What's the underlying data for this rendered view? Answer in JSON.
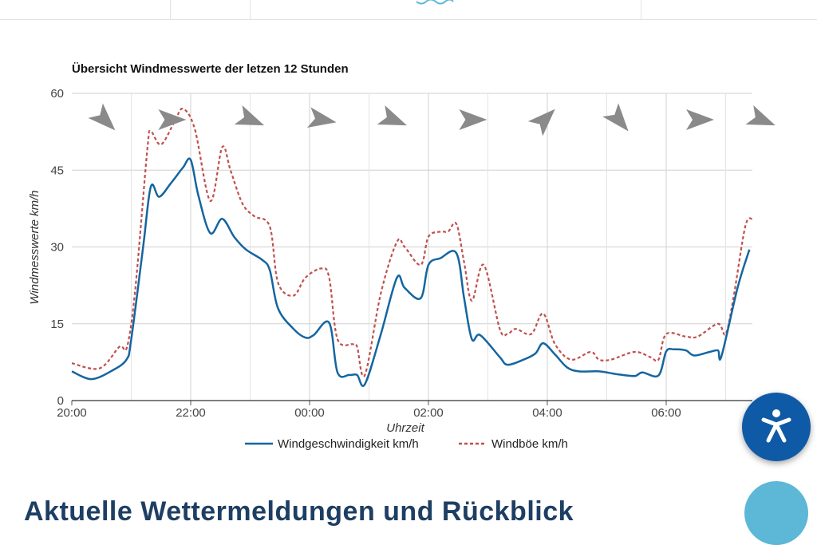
{
  "page": {
    "bottom_heading": "Aktuelle Wettermeldungen und Rückblick"
  },
  "colors": {
    "speed": "#1565a0",
    "gust": "#c0504d",
    "grid": "#d0d0d0",
    "arrow": "#8a8a8a",
    "accessibility_button": "#0f5aa6"
  },
  "icons": {
    "top_logo": "waves-icon",
    "accessibility": "accessibility-person-icon"
  },
  "chart_data": {
    "type": "line",
    "title": "Übersicht Windmesswerte der letzen 12 Stunden",
    "xlabel": "Uhrzeit",
    "ylabel": "Windmesswerte km/h",
    "x_unit": "hours after 20:00",
    "xlim": [
      0,
      11.45
    ],
    "ylim": [
      0,
      60
    ],
    "yticks": [
      0,
      15,
      30,
      45,
      60
    ],
    "xticks": [
      {
        "x": 0,
        "label": "20:00"
      },
      {
        "x": 2,
        "label": "22:00"
      },
      {
        "x": 4,
        "label": "00:00"
      },
      {
        "x": 6,
        "label": "02:00"
      },
      {
        "x": 8,
        "label": "04:00"
      },
      {
        "x": 10,
        "label": "06:00"
      }
    ],
    "grid": true,
    "legend_position": "bottom",
    "series": [
      {
        "name": "Windgeschwindigkeit km/h",
        "style": "solid",
        "points": [
          [
            0,
            5.7
          ],
          [
            0.33,
            4.2
          ],
          [
            0.67,
            5.8
          ],
          [
            0.92,
            8.0
          ],
          [
            1.0,
            12
          ],
          [
            1.2,
            30
          ],
          [
            1.33,
            41.8
          ],
          [
            1.47,
            39.8
          ],
          [
            1.67,
            42.5
          ],
          [
            1.87,
            45.5
          ],
          [
            2.0,
            47
          ],
          [
            2.13,
            40
          ],
          [
            2.33,
            32.7
          ],
          [
            2.53,
            35.5
          ],
          [
            2.73,
            32
          ],
          [
            2.93,
            29.5
          ],
          [
            3.2,
            27.5
          ],
          [
            3.33,
            25.5
          ],
          [
            3.47,
            18
          ],
          [
            3.73,
            14
          ],
          [
            3.93,
            12.3
          ],
          [
            4.07,
            12.8
          ],
          [
            4.33,
            15.2
          ],
          [
            4.47,
            5.5
          ],
          [
            4.67,
            5
          ],
          [
            4.8,
            5
          ],
          [
            4.93,
            3.2
          ],
          [
            5.2,
            13
          ],
          [
            5.47,
            24
          ],
          [
            5.6,
            22
          ],
          [
            5.87,
            20
          ],
          [
            6.0,
            26.5
          ],
          [
            6.2,
            27.8
          ],
          [
            6.47,
            28.8
          ],
          [
            6.6,
            20
          ],
          [
            6.73,
            12
          ],
          [
            6.87,
            12.8
          ],
          [
            7.2,
            8.5
          ],
          [
            7.33,
            7
          ],
          [
            7.6,
            8
          ],
          [
            7.8,
            9.2
          ],
          [
            7.93,
            11.2
          ],
          [
            8.13,
            9
          ],
          [
            8.33,
            6.5
          ],
          [
            8.53,
            5.7
          ],
          [
            8.87,
            5.7
          ],
          [
            9.2,
            5.1
          ],
          [
            9.47,
            4.8
          ],
          [
            9.6,
            5.5
          ],
          [
            9.87,
            4.9
          ],
          [
            10.0,
            9.6
          ],
          [
            10.13,
            10
          ],
          [
            10.33,
            9.8
          ],
          [
            10.47,
            8.8
          ],
          [
            10.73,
            9.5
          ],
          [
            10.87,
            9.8
          ],
          [
            10.93,
            8.7
          ],
          [
            11.2,
            22
          ],
          [
            11.4,
            29.5
          ]
        ]
      },
      {
        "name": "Windböe km/h",
        "style": "dashed",
        "points": [
          [
            0,
            7.3
          ],
          [
            0.47,
            6.3
          ],
          [
            0.8,
            10.5
          ],
          [
            0.93,
            10.5
          ],
          [
            1.07,
            22
          ],
          [
            1.27,
            49
          ],
          [
            1.33,
            52.5
          ],
          [
            1.5,
            50
          ],
          [
            1.73,
            54.5
          ],
          [
            1.87,
            57
          ],
          [
            2.07,
            53
          ],
          [
            2.33,
            39
          ],
          [
            2.53,
            49.5
          ],
          [
            2.67,
            45
          ],
          [
            2.87,
            38.5
          ],
          [
            3.07,
            36
          ],
          [
            3.33,
            34
          ],
          [
            3.47,
            23
          ],
          [
            3.73,
            20.5
          ],
          [
            3.93,
            24
          ],
          [
            4.2,
            25.8
          ],
          [
            4.33,
            24
          ],
          [
            4.47,
            12
          ],
          [
            4.73,
            11
          ],
          [
            4.8,
            10.5
          ],
          [
            4.93,
            5
          ],
          [
            5.2,
            21
          ],
          [
            5.47,
            31
          ],
          [
            5.6,
            30
          ],
          [
            5.87,
            26.5
          ],
          [
            6.0,
            32
          ],
          [
            6.2,
            33
          ],
          [
            6.33,
            33
          ],
          [
            6.47,
            34.5
          ],
          [
            6.6,
            27
          ],
          [
            6.73,
            19.5
          ],
          [
            6.93,
            26.5
          ],
          [
            7.2,
            14
          ],
          [
            7.33,
            13
          ],
          [
            7.47,
            14
          ],
          [
            7.73,
            13
          ],
          [
            7.93,
            17
          ],
          [
            8.13,
            11
          ],
          [
            8.4,
            8
          ],
          [
            8.73,
            9.5
          ],
          [
            8.87,
            8
          ],
          [
            9.07,
            8
          ],
          [
            9.47,
            9.5
          ],
          [
            9.73,
            8.5
          ],
          [
            9.87,
            8
          ],
          [
            10.0,
            13
          ],
          [
            10.33,
            12.5
          ],
          [
            10.53,
            12.5
          ],
          [
            10.87,
            15
          ],
          [
            11.0,
            13
          ],
          [
            11.13,
            20
          ],
          [
            11.33,
            34
          ],
          [
            11.45,
            35.5
          ]
        ]
      }
    ],
    "direction_arrows_deg": [
      {
        "x": 0.55,
        "deg": 135
      },
      {
        "x": 1.67,
        "deg": 90
      },
      {
        "x": 3.0,
        "deg": 112
      },
      {
        "x": 4.2,
        "deg": 100
      },
      {
        "x": 5.4,
        "deg": 112
      },
      {
        "x": 6.73,
        "deg": 90
      },
      {
        "x": 7.95,
        "deg": 45
      },
      {
        "x": 9.2,
        "deg": 140
      },
      {
        "x": 10.55,
        "deg": 90
      },
      {
        "x": 11.6,
        "deg": 112
      }
    ]
  }
}
